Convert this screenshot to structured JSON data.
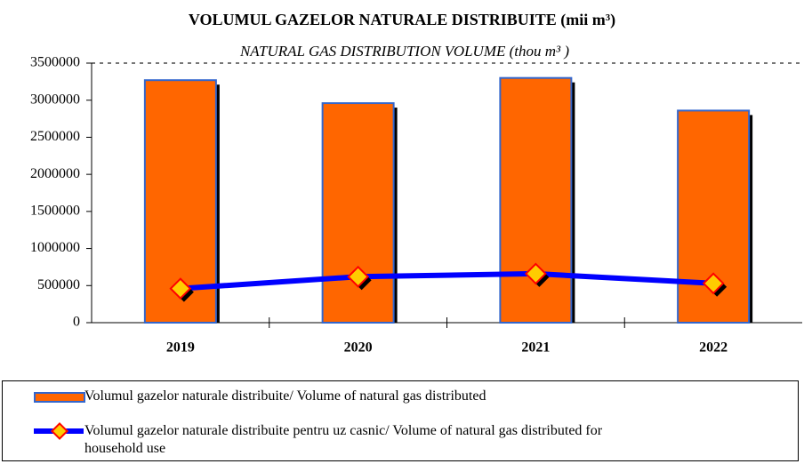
{
  "chart_data": {
    "type": "bar_line",
    "title": "VOLUMUL GAZELOR NATURALE DISTRIBUITE (mii m³)",
    "subtitle": "NATURAL GAS DISTRIBUTION VOLUME (thou m³ )",
    "categories": [
      "2019",
      "2020",
      "2021",
      "2022"
    ],
    "series": [
      {
        "name": "Volumul gazelor naturale distribuite/ Volume of natural gas distributed",
        "type": "bar",
        "color": "#ff6600",
        "values": [
          3270000,
          2960000,
          3300000,
          2860000
        ]
      },
      {
        "name": "Volumul gazelor naturale distribuite pentru uz casnic/ Volume of natural gas distributed for household use",
        "type": "line",
        "color": "#0000ff",
        "marker_color": "#ffcc00",
        "values": [
          460000,
          620000,
          660000,
          530000
        ]
      }
    ],
    "ylim": [
      0,
      3500000
    ],
    "yticks": [
      0,
      500000,
      1000000,
      1500000,
      2000000,
      2500000,
      3000000,
      3500000
    ],
    "grid": false
  }
}
